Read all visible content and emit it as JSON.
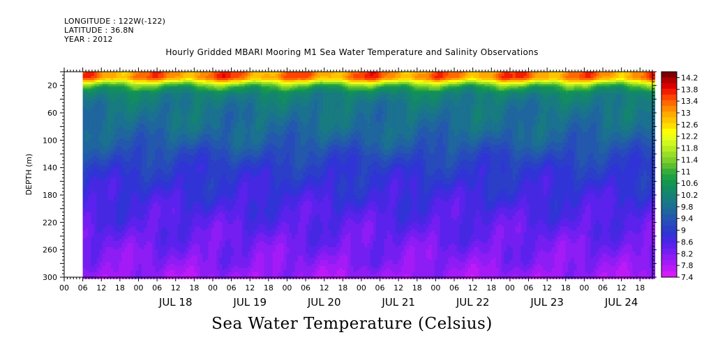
{
  "header": {
    "longitude": "LONGITUDE : 122W(-122)",
    "latitude": "LATITUDE : 36.8N",
    "year": "YEAR : 2012",
    "title": "Hourly Gridded MBARI Mooring M1 Sea Water Temperature and Salinity Observations"
  },
  "footer": {
    "variable_title": "Sea Water Temperature (Celsius)"
  },
  "chart_data": {
    "type": "heatmap",
    "title": "Hourly Gridded MBARI Mooring M1 Sea Water Temperature and Salinity Observations",
    "subtitle": "Sea Water Temperature (Celsius)",
    "xlabel": "",
    "ylabel": "DEPTH (m)",
    "y_axis": {
      "reversed": true,
      "range": [
        0,
        300
      ],
      "tick_labels": [
        20,
        60,
        100,
        140,
        180,
        220,
        260,
        300
      ]
    },
    "x_axis": {
      "unit": "hours since 2012-07-17 00:00",
      "range": [
        0,
        190
      ],
      "data_start": 6,
      "hour_ticks": [
        {
          "t": 0,
          "label": "00"
        },
        {
          "t": 6,
          "label": "06"
        },
        {
          "t": 12,
          "label": "12"
        },
        {
          "t": 18,
          "label": "18"
        },
        {
          "t": 24,
          "label": "00"
        },
        {
          "t": 30,
          "label": "06"
        },
        {
          "t": 36,
          "label": "12"
        },
        {
          "t": 42,
          "label": "18"
        },
        {
          "t": 48,
          "label": "00"
        },
        {
          "t": 54,
          "label": "06"
        },
        {
          "t": 60,
          "label": "12"
        },
        {
          "t": 66,
          "label": "18"
        },
        {
          "t": 72,
          "label": "00"
        },
        {
          "t": 78,
          "label": "06"
        },
        {
          "t": 84,
          "label": "12"
        },
        {
          "t": 90,
          "label": "18"
        },
        {
          "t": 96,
          "label": "00"
        },
        {
          "t": 102,
          "label": "06"
        },
        {
          "t": 108,
          "label": "12"
        },
        {
          "t": 114,
          "label": "18"
        },
        {
          "t": 120,
          "label": "00"
        },
        {
          "t": 126,
          "label": "06"
        },
        {
          "t": 132,
          "label": "12"
        },
        {
          "t": 138,
          "label": "18"
        },
        {
          "t": 144,
          "label": "00"
        },
        {
          "t": 150,
          "label": "06"
        },
        {
          "t": 156,
          "label": "12"
        },
        {
          "t": 162,
          "label": "18"
        },
        {
          "t": 168,
          "label": "00"
        },
        {
          "t": 174,
          "label": "06"
        },
        {
          "t": 180,
          "label": "12"
        },
        {
          "t": 186,
          "label": "18"
        }
      ],
      "day_labels": [
        {
          "t": 36,
          "label": "JUL 18"
        },
        {
          "t": 60,
          "label": "JUL 19"
        },
        {
          "t": 84,
          "label": "JUL 20"
        },
        {
          "t": 108,
          "label": "JUL 21"
        },
        {
          "t": 132,
          "label": "JUL 22"
        },
        {
          "t": 156,
          "label": "JUL 23"
        },
        {
          "t": 180,
          "label": "JUL 24"
        }
      ]
    },
    "colorbar": {
      "min": 7.4,
      "max": 14.4,
      "labels": [
        "14.2",
        "13.8",
        "13.4",
        "13",
        "12.6",
        "12.2",
        "11.8",
        "11.4",
        "11",
        "10.6",
        "10.2",
        "9.8",
        "9.4",
        "9",
        "8.6",
        "8.2",
        "7.8",
        "7.4"
      ],
      "colors": [
        "#7a0000",
        "#b00000",
        "#d90000",
        "#f21d00",
        "#ff4400",
        "#ff6a00",
        "#ff8c00",
        "#ffaa00",
        "#ffc400",
        "#ffde00",
        "#ffff00",
        "#e8ff1a",
        "#d0f81e",
        "#b5ec22",
        "#99dd26",
        "#7ecf2c",
        "#5cbf30",
        "#36ad38",
        "#1ea045",
        "#149552",
        "#128c60",
        "#148470",
        "#187b80",
        "#1b7190",
        "#1f659e",
        "#2358ad",
        "#274bbb",
        "#2a3ec8",
        "#3033d6",
        "#4628e3",
        "#5a22ec",
        "#741ef2",
        "#8e1cf5",
        "#a41bf7",
        "#bc1bf8",
        "#d41cf8"
      ],
      "depth_means": [
        [
          8,
          13.2
        ],
        [
          14,
          12.0
        ],
        [
          20,
          11.0
        ],
        [
          30,
          10.2
        ],
        [
          45,
          9.95
        ],
        [
          60,
          9.85
        ],
        [
          80,
          9.75
        ],
        [
          100,
          9.55
        ],
        [
          120,
          9.25
        ],
        [
          140,
          9.0
        ],
        [
          170,
          8.8
        ],
        [
          200,
          8.6
        ],
        [
          240,
          8.35
        ],
        [
          280,
          8.1
        ],
        [
          300,
          7.9
        ]
      ]
    }
  }
}
